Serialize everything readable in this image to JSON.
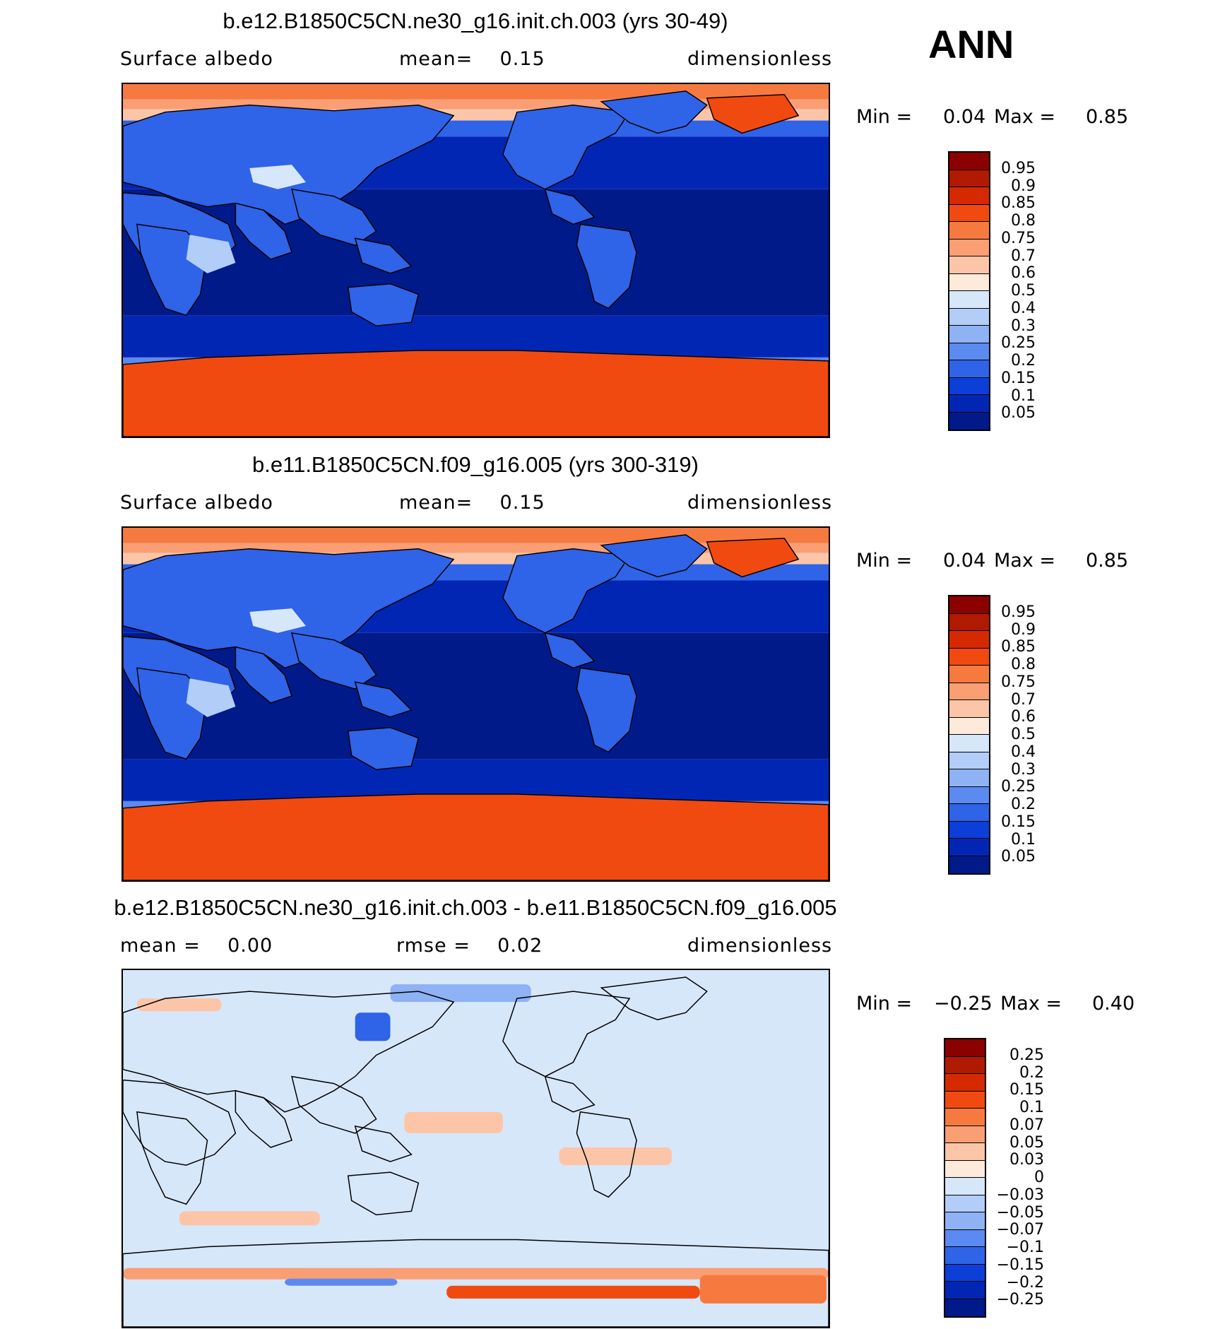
{
  "season": "ANN",
  "panels": [
    {
      "title": "b.e12.B1850C5CN.ne30_g16.init.ch.003 (yrs 30-49)",
      "left_label": "Surface albedo",
      "center_label": "mean=    0.15",
      "right_label": "dimensionless",
      "min_label": "Min =",
      "min_value": "0.04",
      "max_label": "Max =",
      "max_value": "0.85",
      "field": "absolute"
    },
    {
      "title": "b.e11.B1850C5CN.f09_g16.005 (yrs 300-319)",
      "left_label": "Surface albedo",
      "center_label": "mean=    0.15",
      "right_label": "dimensionless",
      "min_label": "Min =",
      "min_value": "0.04",
      "max_label": "Max =",
      "max_value": "0.85",
      "field": "absolute"
    },
    {
      "title": "b.e12.B1850C5CN.ne30_g16.init.ch.003 - b.e11.B1850C5CN.f09_g16.005",
      "left_label": "mean =    0.00",
      "center_label": "rmse =    0.02",
      "right_label": "dimensionless",
      "min_label": "Min =",
      "min_value": "−0.25",
      "max_label": "Max =",
      "max_value": "0.40",
      "field": "difference"
    }
  ],
  "colorbars": {
    "absolute": {
      "labels": [
        "0.95",
        "0.9",
        "0.85",
        "0.8",
        "0.75",
        "0.7",
        "0.6",
        "0.5",
        "0.4",
        "0.3",
        "0.25",
        "0.2",
        "0.15",
        "0.1",
        "0.05"
      ],
      "colors": [
        "#8b0000",
        "#b01a00",
        "#d52a00",
        "#f04a10",
        "#f67a40",
        "#fa9e74",
        "#fcc5a8",
        "#fdeadb",
        "#d7e7fa",
        "#b2cdf7",
        "#8eb2f4",
        "#5b8af0",
        "#2f63e8",
        "#0c3ed8",
        "#0226b4",
        "#001a8a"
      ]
    },
    "difference": {
      "labels": [
        "0.25",
        "0.2",
        "0.15",
        "0.1",
        "0.07",
        "0.05",
        "0.03",
        "0",
        "−0.03",
        "−0.05",
        "−0.07",
        "−0.1",
        "−0.15",
        "−0.2",
        "−0.25"
      ],
      "colors": [
        "#8b0000",
        "#b01a00",
        "#d52a00",
        "#f04a10",
        "#f67a40",
        "#fa9e74",
        "#fcc5a8",
        "#fdeadb",
        "#d7e7fa",
        "#b2cdf7",
        "#8eb2f4",
        "#5b8af0",
        "#2f63e8",
        "#0c3ed8",
        "#0226b4",
        "#001a8a"
      ]
    }
  }
}
